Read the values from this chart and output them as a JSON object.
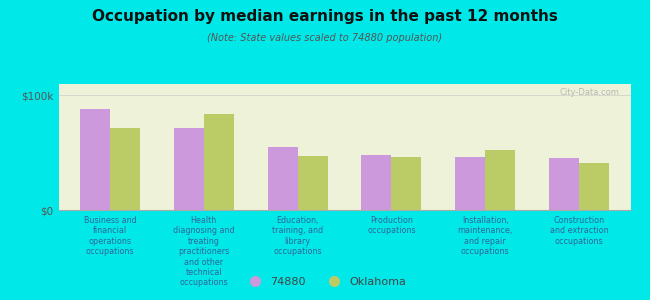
{
  "title": "Occupation by median earnings in the past 12 months",
  "subtitle": "(Note: State values scaled to 74880 population)",
  "background_color": "#00e8e8",
  "plot_bg_color": "#eef2d8",
  "categories": [
    "Business and\nfinancial\noperations\noccupations",
    "Health\ndiagnosing and\ntreating\npractitioners\nand other\ntechnical\noccupations",
    "Education,\ntraining, and\nlibrary\noccupations",
    "Production\noccupations",
    "Installation,\nmaintenance,\nand repair\noccupations",
    "Construction\nand extraction\noccupations"
  ],
  "values_74880": [
    88000,
    72000,
    55000,
    48000,
    46000,
    45000
  ],
  "values_oklahoma": [
    72000,
    84000,
    47000,
    46000,
    52000,
    41000
  ],
  "color_74880": "#cc99dd",
  "color_oklahoma": "#bbcc66",
  "ylim": [
    0,
    110000
  ],
  "yticks": [
    0,
    100000
  ],
  "ytick_labels": [
    "$0",
    "$100k"
  ],
  "legend_74880": "74880",
  "legend_oklahoma": "Oklahoma",
  "watermark": "City-Data.com",
  "label_color": "#336699",
  "title_color": "#111111"
}
